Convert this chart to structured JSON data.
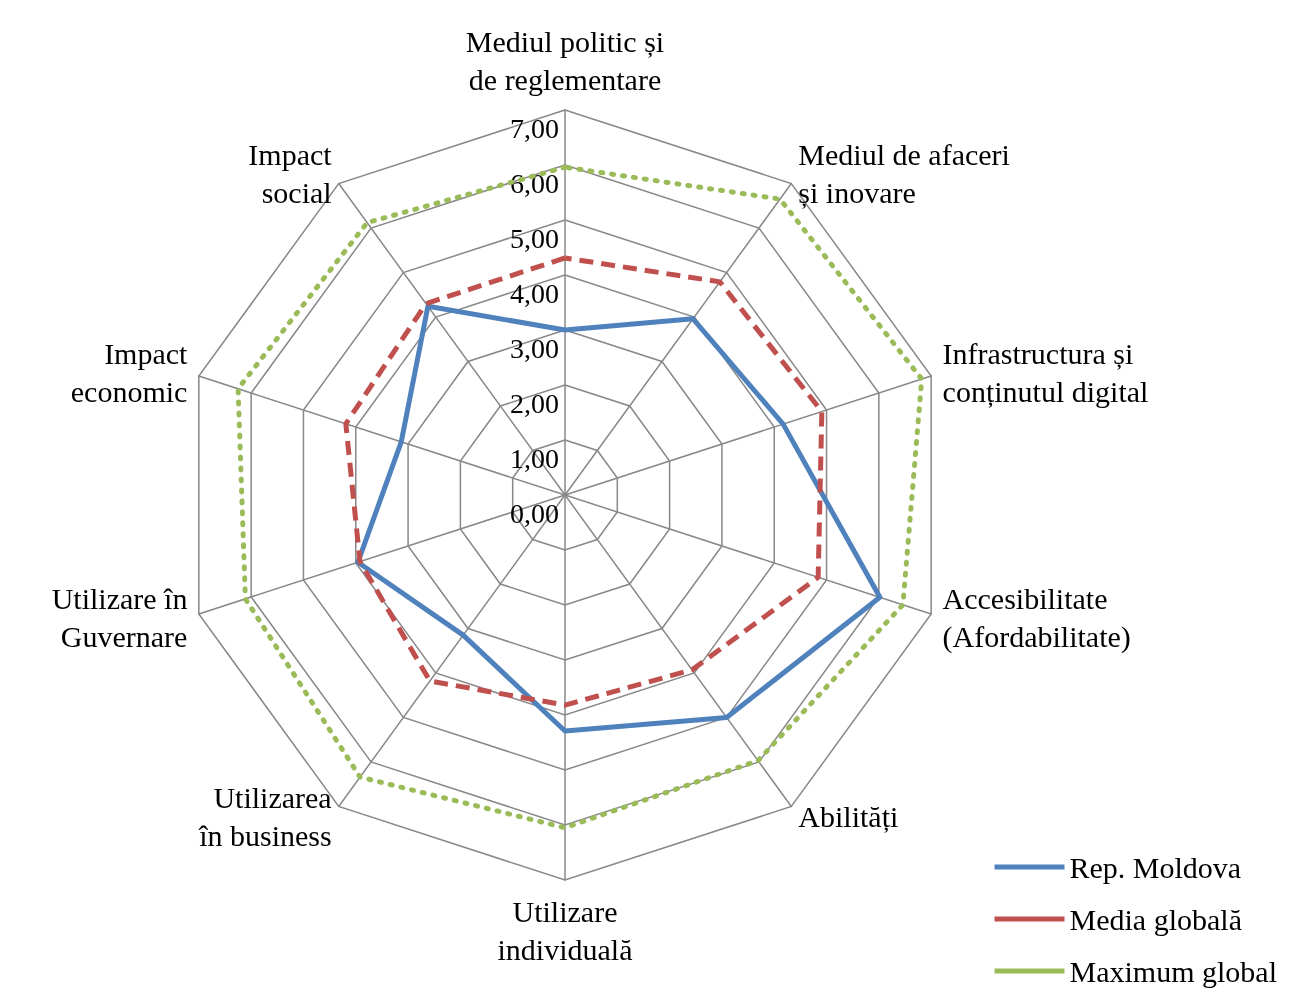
{
  "chart_data": {
    "type": "radar",
    "categories": [
      "Mediul politic și de reglementare",
      "Mediul de afaceri și inovare",
      "Infrastructura și conținutul digital",
      "Accesibilitate (Afordabilitate)",
      "Abilități",
      "Utilizare individuală",
      "Utilizarea în business",
      "Utilizare în Guvernare",
      "Impact economic",
      "Impact social"
    ],
    "series": [
      {
        "name": "Rep. Moldova",
        "color": "#4f81bd",
        "line_style": "solid",
        "values": [
          3.0,
          3.96,
          4.17,
          6.02,
          5.0,
          4.29,
          3.15,
          3.96,
          3.13,
          4.24
        ]
      },
      {
        "name": "Media globală",
        "color": "#c0504d",
        "line_style": "dashed",
        "values": [
          4.31,
          4.79,
          4.91,
          4.84,
          3.93,
          3.82,
          4.18,
          3.92,
          4.19,
          4.3
        ]
      },
      {
        "name": "Maximum global",
        "color": "#9bbb59",
        "line_style": "dotted",
        "values": [
          5.96,
          6.65,
          6.82,
          6.46,
          5.97,
          6.05,
          6.34,
          6.11,
          6.25,
          6.12
        ]
      }
    ],
    "ylim": [
      0,
      7
    ],
    "yticks": [
      {
        "value": 0,
        "label": "0,00"
      },
      {
        "value": 1,
        "label": "1,00"
      },
      {
        "value": 2,
        "label": "2,00"
      },
      {
        "value": 3,
        "label": "3,00"
      },
      {
        "value": 4,
        "label": "4,00"
      },
      {
        "value": 5,
        "label": "5,00"
      },
      {
        "value": 6,
        "label": "6,00"
      },
      {
        "value": 7,
        "label": "7,00"
      }
    ],
    "legend": "bottom right",
    "marker": "none"
  }
}
